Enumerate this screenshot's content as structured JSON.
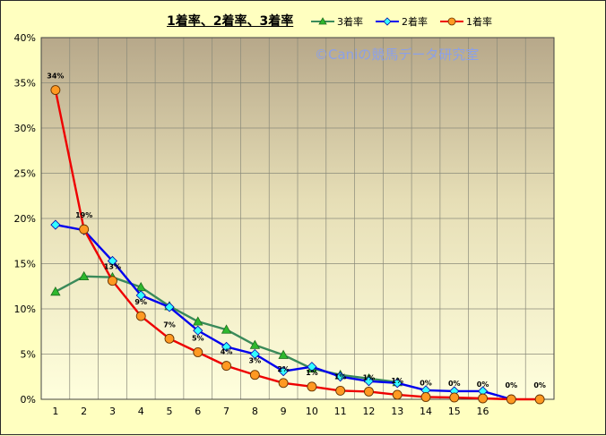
{
  "chart_data": {
    "type": "line",
    "title": "1着率、2着率、3着率",
    "watermark": "©Caniの競馬データ研究室",
    "x": [
      "1",
      "2",
      "3",
      "4",
      "5",
      "6",
      "7",
      "8",
      "9",
      "10",
      "11",
      "12",
      "13",
      "14",
      "15",
      "16",
      "17",
      "18"
    ],
    "x_tick_labels": [
      "1",
      "2",
      "3",
      "4",
      "5",
      "6",
      "7",
      "8",
      "9",
      "10",
      "11",
      "12",
      "13",
      "14",
      "15",
      "16",
      "",
      ""
    ],
    "ylim": [
      0,
      40
    ],
    "y_ticks": [
      0,
      5,
      10,
      15,
      20,
      25,
      30,
      35,
      40
    ],
    "y_tick_labels": [
      "0%",
      "5%",
      "10%",
      "15%",
      "20%",
      "25%",
      "30%",
      "35%",
      "40%"
    ],
    "grid": true,
    "legend": "top",
    "series": [
      {
        "name": "3着率",
        "color": "#3A8A5A",
        "marker": "triangle",
        "marker_color": "#2EB82E",
        "values": [
          11.9,
          13.6,
          13.5,
          12.4,
          10.3,
          8.6,
          7.7,
          6.0,
          4.9,
          3.4,
          2.7,
          2.3,
          1.9,
          null,
          null,
          null,
          null,
          null
        ]
      },
      {
        "name": "2着率",
        "color": "#0000EE",
        "marker": "diamond",
        "marker_color": "#33FFFF",
        "values": [
          19.3,
          18.7,
          15.3,
          11.5,
          10.2,
          7.6,
          5.8,
          5.0,
          3.1,
          3.6,
          2.5,
          2.0,
          1.8,
          1.0,
          0.9,
          0.9,
          0.0,
          null
        ]
      },
      {
        "name": "1着率",
        "color": "#EE0000",
        "marker": "circle",
        "marker_color": "#FF9922",
        "values": [
          34.2,
          18.8,
          13.1,
          9.2,
          6.7,
          5.2,
          3.7,
          2.7,
          1.8,
          1.4,
          0.95,
          0.85,
          0.5,
          0.25,
          0.2,
          0.1,
          0.0,
          0.0
        ]
      }
    ],
    "data_labels": [
      "34%",
      "19%",
      "13%",
      "9%",
      "7%",
      "5%",
      "4%",
      "3%",
      "2%",
      "1%",
      "1%",
      "1%",
      "1%",
      "0%",
      "0%",
      "0%",
      "0%",
      "0%"
    ]
  }
}
